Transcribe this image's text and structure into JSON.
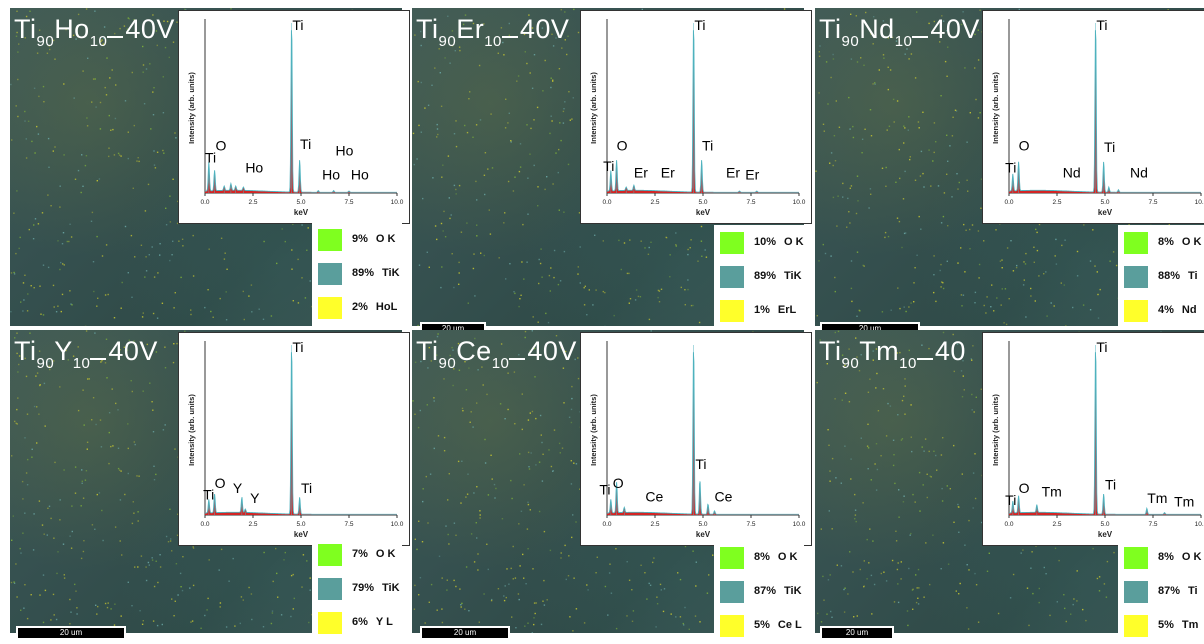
{
  "colors": {
    "spectrum_red": "#d42424",
    "spectrum_teal": "#4fb3bf",
    "swatch_O": "#7fff1f",
    "swatch_Ti": "#5a9e9c",
    "swatch_RE": "#ffff2a"
  },
  "chart_data": [
    {
      "type": "area",
      "panel_title": {
        "base": "Ti",
        "sub1": "90",
        "el": "Ho",
        "sub2": "10",
        "suffix": "40V"
      },
      "xlabel": "keV",
      "ylabel": "Intensity (arb. units)",
      "xlim": [
        0,
        10
      ],
      "xticks": [
        "0.0",
        "2.5",
        "5.0",
        "7.5",
        "10.0"
      ],
      "grid": false,
      "peaks": [
        {
          "x": 0.2,
          "y": 0.17
        },
        {
          "x": 0.5,
          "y": 0.12
        },
        {
          "x": 1.0,
          "y": 0.025
        },
        {
          "x": 1.35,
          "y": 0.04
        },
        {
          "x": 1.6,
          "y": 0.025
        },
        {
          "x": 2.0,
          "y": 0.02
        },
        {
          "x": 4.51,
          "y": 1.0
        },
        {
          "x": 4.93,
          "y": 0.19
        },
        {
          "x": 5.9,
          "y": 0.01
        },
        {
          "x": 6.7,
          "y": 0.01
        },
        {
          "x": 7.5,
          "y": 0.008
        }
      ],
      "peak_labels": [
        {
          "text": "Ti",
          "x": 0.0,
          "y": 0.18
        },
        {
          "text": "O",
          "x": 0.55,
          "y": 0.25
        },
        {
          "text": "Ho",
          "x": 2.1,
          "y": 0.12
        },
        {
          "text": "Ti",
          "x": 4.55,
          "y": 0.96
        },
        {
          "text": "Ti",
          "x": 4.95,
          "y": 0.26
        },
        {
          "text": "Ho",
          "x": 6.1,
          "y": 0.08
        },
        {
          "text": "Ho",
          "x": 6.8,
          "y": 0.22
        },
        {
          "text": "Ho",
          "x": 7.6,
          "y": 0.08
        }
      ],
      "legend": [
        {
          "pct": "9%",
          "label": "O K",
          "color": "#7fff1f"
        },
        {
          "pct": "89%",
          "label": "TiK",
          "color": "#5a9e9c"
        },
        {
          "pct": "2%",
          "label": "HoL",
          "color": "#ffff2a"
        }
      ],
      "scale_bar": ""
    },
    {
      "type": "area",
      "panel_title": {
        "base": "Ti",
        "sub1": "90",
        "el": "Er",
        "sub2": "10",
        "suffix": "40V"
      },
      "xlabel": "keV",
      "ylabel": "Intensity (arb. units)",
      "xlim": [
        0,
        10
      ],
      "xticks": [
        "0.0",
        "2.5",
        "5.0",
        "7.5",
        "10.0"
      ],
      "grid": false,
      "peaks": [
        {
          "x": 0.2,
          "y": 0.12
        },
        {
          "x": 0.5,
          "y": 0.18
        },
        {
          "x": 1.0,
          "y": 0.02
        },
        {
          "x": 1.4,
          "y": 0.03
        },
        {
          "x": 4.51,
          "y": 1.0
        },
        {
          "x": 4.93,
          "y": 0.19
        },
        {
          "x": 6.9,
          "y": 0.008
        },
        {
          "x": 7.8,
          "y": 0.008
        }
      ],
      "peak_labels": [
        {
          "text": "Ti",
          "x": -0.2,
          "y": 0.13
        },
        {
          "text": "O",
          "x": 0.5,
          "y": 0.25
        },
        {
          "text": "Er",
          "x": 1.4,
          "y": 0.09
        },
        {
          "text": "Er",
          "x": 2.8,
          "y": 0.09
        },
        {
          "text": "Ti",
          "x": 4.55,
          "y": 0.96
        },
        {
          "text": "Ti",
          "x": 4.95,
          "y": 0.25
        },
        {
          "text": "Er",
          "x": 6.2,
          "y": 0.09
        },
        {
          "text": "Er",
          "x": 7.2,
          "y": 0.08
        }
      ],
      "legend": [
        {
          "pct": "10%",
          "label": "O K",
          "color": "#7fff1f"
        },
        {
          "pct": "89%",
          "label": "TiK",
          "color": "#5a9e9c"
        },
        {
          "pct": "1%",
          "label": "ErL",
          "color": "#ffff2a"
        }
      ],
      "scale_bar": "20 um"
    },
    {
      "type": "area",
      "panel_title": {
        "base": "Ti",
        "sub1": "90",
        "el": "Nd",
        "sub2": "10",
        "suffix": "40V"
      },
      "xlabel": "keV",
      "ylabel": "Intensity (arb. units)",
      "xlim": [
        0,
        10
      ],
      "xticks": [
        "0.0",
        "2.5",
        "5.0",
        "7.5",
        "10.0"
      ],
      "grid": false,
      "peaks": [
        {
          "x": 0.2,
          "y": 0.1
        },
        {
          "x": 0.5,
          "y": 0.17
        },
        {
          "x": 4.51,
          "y": 1.0
        },
        {
          "x": 4.93,
          "y": 0.18
        },
        {
          "x": 5.2,
          "y": 0.03
        },
        {
          "x": 5.7,
          "y": 0.015
        }
      ],
      "peak_labels": [
        {
          "text": "Ti",
          "x": -0.2,
          "y": 0.12
        },
        {
          "text": "O",
          "x": 0.5,
          "y": 0.25
        },
        {
          "text": "Nd",
          "x": 2.8,
          "y": 0.09
        },
        {
          "text": "Ti",
          "x": 4.55,
          "y": 0.96
        },
        {
          "text": "Ti",
          "x": 4.95,
          "y": 0.24
        },
        {
          "text": "Nd",
          "x": 6.3,
          "y": 0.09
        }
      ],
      "legend": [
        {
          "pct": "8%",
          "label": "O K",
          "color": "#7fff1f"
        },
        {
          "pct": "88%",
          "label": "Ti",
          "color": "#5a9e9c"
        },
        {
          "pct": "4%",
          "label": "Nd",
          "color": "#ffff2a"
        }
      ],
      "scale_bar": "20 um"
    },
    {
      "type": "area",
      "panel_title": {
        "base": "Ti",
        "sub1": "90",
        "el": "Y",
        "sub2": "10",
        "suffix": "40V"
      },
      "xlabel": "keV",
      "ylabel": "Intensity (arb. units)",
      "xlim": [
        0,
        10
      ],
      "xticks": [
        "0.0",
        "2.5",
        "5.0",
        "7.5",
        "10.0"
      ],
      "grid": false,
      "peaks": [
        {
          "x": 0.2,
          "y": 0.08
        },
        {
          "x": 0.5,
          "y": 0.11
        },
        {
          "x": 1.92,
          "y": 0.09
        },
        {
          "x": 2.1,
          "y": 0.02
        },
        {
          "x": 4.51,
          "y": 1.0
        },
        {
          "x": 4.93,
          "y": 0.1
        }
      ],
      "peak_labels": [
        {
          "text": "Ti",
          "x": -0.1,
          "y": 0.09
        },
        {
          "text": "O",
          "x": 0.5,
          "y": 0.16
        },
        {
          "text": "Y",
          "x": 1.45,
          "y": 0.13
        },
        {
          "text": "Y",
          "x": 2.35,
          "y": 0.07
        },
        {
          "text": "Ti",
          "x": 4.55,
          "y": 0.96
        },
        {
          "text": "Ti",
          "x": 5.0,
          "y": 0.13
        }
      ],
      "legend": [
        {
          "pct": "7%",
          "label": "O K",
          "color": "#7fff1f"
        },
        {
          "pct": "79%",
          "label": "TiK",
          "color": "#5a9e9c"
        },
        {
          "pct": "6%",
          "label": "Y L",
          "color": "#ffff2a"
        }
      ],
      "scale_bar": "20 um"
    },
    {
      "type": "area",
      "panel_title": {
        "base": "Ti",
        "sub1": "90",
        "el": "Ce",
        "sub2": "10",
        "suffix": "40V"
      },
      "xlabel": "keV",
      "ylabel": "Intensity (arb. units)",
      "xlim": [
        0,
        10
      ],
      "xticks": [
        "0.0",
        "2.5",
        "5.0",
        "7.5",
        "10.0"
      ],
      "grid": false,
      "peaks": [
        {
          "x": 0.2,
          "y": 0.08
        },
        {
          "x": 0.5,
          "y": 0.18
        },
        {
          "x": 0.9,
          "y": 0.03
        },
        {
          "x": 4.51,
          "y": 1.0
        },
        {
          "x": 4.84,
          "y": 0.2
        },
        {
          "x": 5.26,
          "y": 0.06
        },
        {
          "x": 5.6,
          "y": 0.02
        }
      ],
      "peak_labels": [
        {
          "text": "Ti",
          "x": -0.4,
          "y": 0.12
        },
        {
          "text": "O",
          "x": 0.3,
          "y": 0.16
        },
        {
          "text": "Ce",
          "x": 2.0,
          "y": 0.08
        },
        {
          "text": "Ti",
          "x": 4.6,
          "y": 0.27
        },
        {
          "text": "Ce",
          "x": 5.6,
          "y": 0.08
        }
      ],
      "legend": [
        {
          "pct": "8%",
          "label": "O K",
          "color": "#7fff1f"
        },
        {
          "pct": "87%",
          "label": "TiK",
          "color": "#5a9e9c"
        },
        {
          "pct": "5%",
          "label": "Ce L",
          "color": "#ffff2a"
        }
      ],
      "scale_bar": "20 um"
    },
    {
      "type": "area",
      "panel_title": {
        "base": "Ti",
        "sub1": "90",
        "el": "Tm",
        "sub2": "10",
        "suffix": "40"
      },
      "xlabel": "keV",
      "ylabel": "Intensity (arb. units)",
      "xlim": [
        0,
        10
      ],
      "xticks": [
        "0.0",
        "2.5",
        "5.0",
        "7.5",
        "10.0"
      ],
      "grid": false,
      "peaks": [
        {
          "x": 0.2,
          "y": 0.07
        },
        {
          "x": 0.5,
          "y": 0.1
        },
        {
          "x": 1.45,
          "y": 0.045
        },
        {
          "x": 4.51,
          "y": 1.0
        },
        {
          "x": 4.93,
          "y": 0.12
        },
        {
          "x": 7.18,
          "y": 0.035
        },
        {
          "x": 8.1,
          "y": 0.01
        }
      ],
      "peak_labels": [
        {
          "text": "Ti",
          "x": -0.2,
          "y": 0.06
        },
        {
          "text": "O",
          "x": 0.5,
          "y": 0.13
        },
        {
          "text": "Tm",
          "x": 1.7,
          "y": 0.11
        },
        {
          "text": "Ti",
          "x": 4.55,
          "y": 0.96
        },
        {
          "text": "Ti",
          "x": 5.0,
          "y": 0.15
        },
        {
          "text": "Tm",
          "x": 7.2,
          "y": 0.07
        },
        {
          "text": "Tm",
          "x": 8.6,
          "y": 0.05
        }
      ],
      "legend": [
        {
          "pct": "8%",
          "label": "O K",
          "color": "#7fff1f"
        },
        {
          "pct": "87%",
          "label": "Ti",
          "color": "#5a9e9c"
        },
        {
          "pct": "5%",
          "label": "Tm",
          "color": "#ffff2a"
        }
      ],
      "scale_bar": "20 um"
    }
  ]
}
